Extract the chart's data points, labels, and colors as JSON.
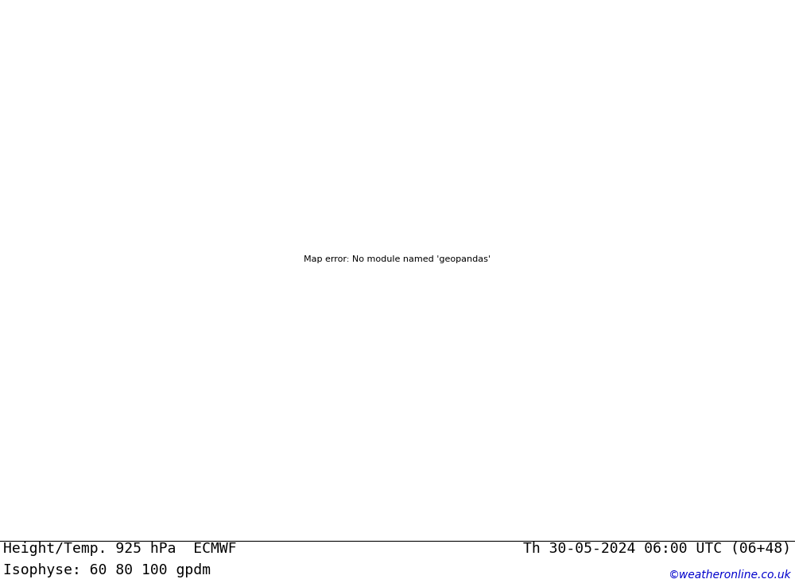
{
  "title_left": "Height/Temp. 925 hPa  ECMWF",
  "title_left2": "Isophyse: 60 80 100 gpdm",
  "title_right": "Th 30-05-2024 06:00 UTC (06+48)",
  "watermark": "©weatheronline.co.uk",
  "bg_color": "#d8d8d8",
  "land_color": "#90ee90",
  "sea_color": "#c0c0c0",
  "text_color": "#000000",
  "title_fontsize": 13,
  "watermark_color": "#0000cc",
  "footer_bg": "#ffffff",
  "map_extent": [
    -5,
    42,
    50,
    73
  ],
  "proj_lon0": 15,
  "proj_lat0": 62
}
